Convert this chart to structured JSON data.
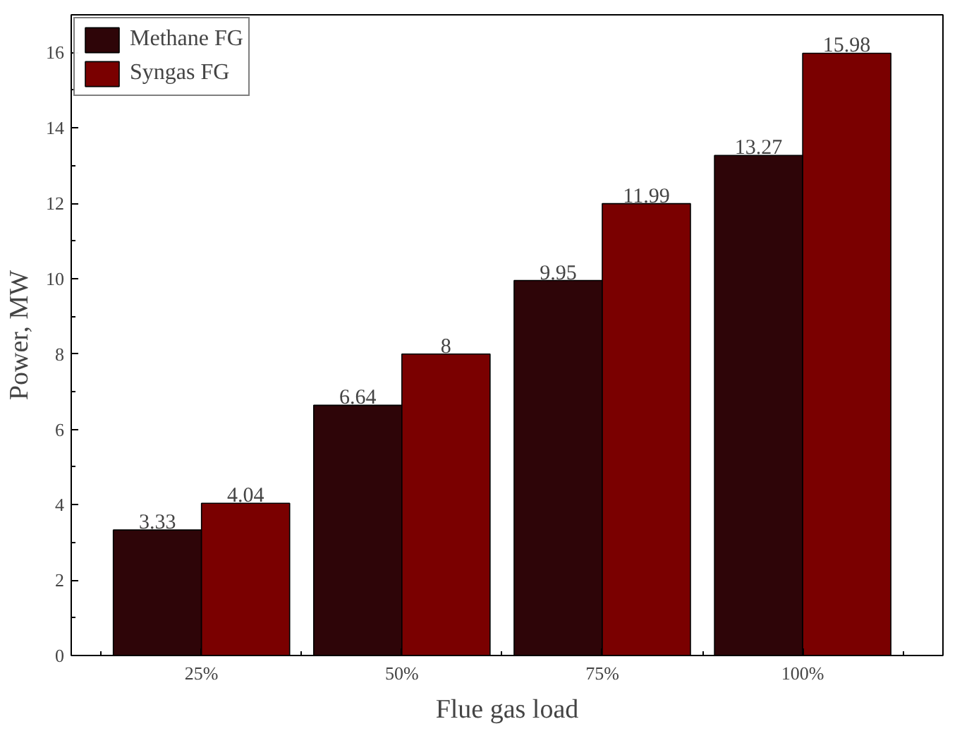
{
  "chart_data": {
    "type": "bar",
    "xlabel": "Flue gas load",
    "ylabel": "Power, MW",
    "categories": [
      "25%",
      "50%",
      "75%",
      "100%"
    ],
    "series": [
      {
        "name": "Methane FG",
        "color": "#2e0508",
        "values": [
          3.33,
          6.64,
          9.95,
          13.27
        ]
      },
      {
        "name": "Syngas FG",
        "color": "#7a0000",
        "values": [
          4.04,
          8,
          11.99,
          15.98
        ]
      }
    ],
    "ylim": [
      0,
      17
    ],
    "yticks": [
      0,
      2,
      4,
      6,
      8,
      10,
      12,
      14,
      16
    ],
    "data_labels": true,
    "legend": "top left",
    "grid": false
  }
}
